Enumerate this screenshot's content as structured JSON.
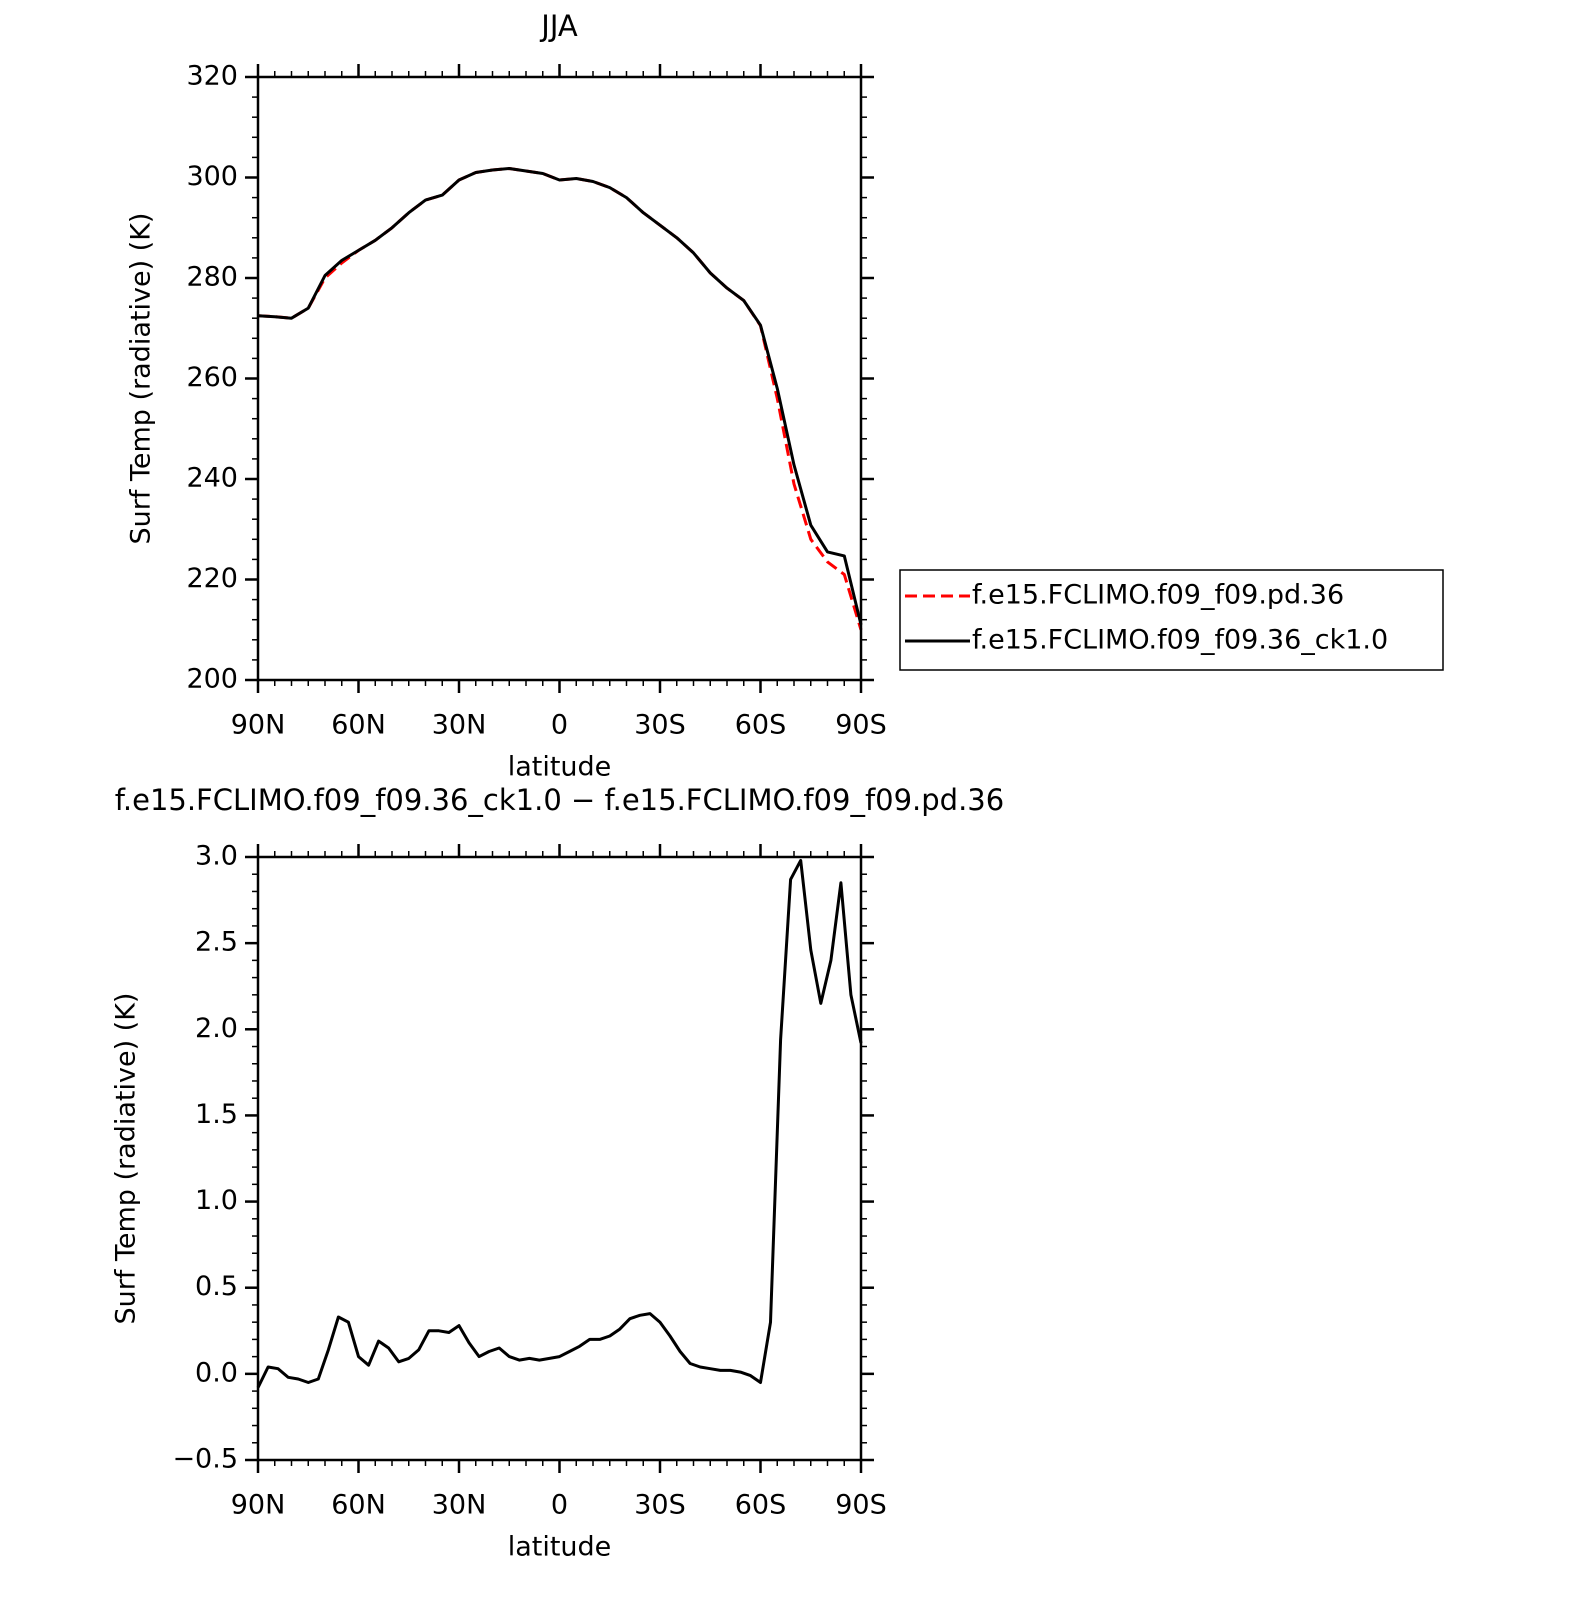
{
  "chart_data": [
    {
      "type": "line",
      "title": "JJA",
      "xlabel": "latitude",
      "ylabel": "Surf Temp (radiative) (K)",
      "x": [
        90,
        85,
        80,
        75,
        70,
        65,
        60,
        55,
        50,
        45,
        40,
        35,
        30,
        25,
        20,
        15,
        10,
        5,
        0,
        -5,
        -10,
        -15,
        -20,
        -25,
        -30,
        -35,
        -40,
        -45,
        -50,
        -55,
        -60,
        -65,
        -70,
        -75,
        -80,
        -85,
        -90
      ],
      "series": [
        {
          "name": "f.e15.FCLIMO.f09_f09.pd.36",
          "color": "#ff0000",
          "dash": true,
          "values": [
            272.5,
            272.3,
            272,
            274,
            280,
            283,
            285.5,
            287.5,
            290,
            293,
            295.5,
            296.5,
            299.5,
            301,
            301.5,
            301.8,
            301.3,
            300.8,
            299.5,
            299.8,
            299.2,
            298,
            296,
            293,
            290.5,
            288,
            285,
            281,
            278,
            275.5,
            270.5,
            256,
            239,
            228,
            223.5,
            221,
            210
          ]
        },
        {
          "name": "f.e15.FCLIMO.f09_f09.36_ck1.0",
          "color": "#000000",
          "dash": false,
          "values": [
            272.5,
            272.3,
            272,
            274,
            280.5,
            283.5,
            285.5,
            287.5,
            290,
            293,
            295.5,
            296.5,
            299.5,
            301,
            301.5,
            301.8,
            301.3,
            300.8,
            299.5,
            299.8,
            299.2,
            298,
            296,
            293,
            290.5,
            288,
            285,
            281,
            278,
            275.5,
            270.6,
            258,
            242.8,
            230.8,
            225.5,
            224.7,
            211
          ]
        }
      ],
      "xlim": [
        90,
        -90
      ],
      "xticks": [
        {
          "value": 90,
          "label": "90N"
        },
        {
          "value": 60,
          "label": "60N"
        },
        {
          "value": 30,
          "label": "30N"
        },
        0,
        {
          "value": -30,
          "label": "30S"
        },
        {
          "value": -60,
          "label": "60S"
        },
        {
          "value": -90,
          "label": "90S"
        }
      ],
      "ylim": [
        200,
        320
      ],
      "yticks": [
        200,
        220,
        240,
        260,
        280,
        300,
        320
      ]
    },
    {
      "type": "line",
      "title": "f.e15.FCLIMO.f09_f09.36_ck1.0 − f.e15.FCLIMO.f09_f09.pd.36",
      "xlabel": "latitude",
      "ylabel": "Surf Temp (radiative) (K)",
      "x": [
        90,
        87,
        84,
        81,
        78,
        75,
        72,
        69,
        66,
        63,
        60,
        57,
        54,
        51,
        48,
        45,
        42,
        39,
        36,
        33,
        30,
        27,
        24,
        21,
        18,
        15,
        12,
        9,
        6,
        3,
        0,
        -3,
        -6,
        -9,
        -12,
        -15,
        -18,
        -21,
        -24,
        -27,
        -30,
        -33,
        -36,
        -39,
        -42,
        -45,
        -48,
        -51,
        -54,
        -57,
        -60,
        -63,
        -66,
        -69,
        -72,
        -75,
        -78,
        -81,
        -84,
        -87,
        -90
      ],
      "series": [
        {
          "color": "#000000",
          "values": [
            -0.08,
            0.04,
            0.03,
            -0.02,
            -0.03,
            -0.05,
            -0.03,
            0.14,
            0.33,
            0.3,
            0.1,
            0.05,
            0.19,
            0.15,
            0.07,
            0.09,
            0.14,
            0.25,
            0.25,
            0.24,
            0.28,
            0.18,
            0.1,
            0.13,
            0.15,
            0.1,
            0.08,
            0.09,
            0.08,
            0.09,
            0.1,
            0.13,
            0.16,
            0.2,
            0.2,
            0.22,
            0.26,
            0.32,
            0.34,
            0.35,
            0.3,
            0.22,
            0.13,
            0.06,
            0.04,
            0.03,
            0.02,
            0.02,
            0.01,
            -0.01,
            -0.05,
            0.3,
            1.94,
            2.87,
            2.98,
            2.46,
            2.15,
            2.4,
            2.85,
            2.2,
            1.92
          ]
        }
      ],
      "xlim": [
        90,
        -90
      ],
      "xticks": [
        {
          "value": 90,
          "label": "90N"
        },
        {
          "value": 60,
          "label": "60N"
        },
        {
          "value": 30,
          "label": "30N"
        },
        0,
        {
          "value": -30,
          "label": "30S"
        },
        {
          "value": -60,
          "label": "60S"
        },
        {
          "value": -90,
          "label": "90S"
        }
      ],
      "ylim": [
        -0.5,
        3.0
      ],
      "yticks": [
        {
          "value": -0.5,
          "label": "−0.5"
        },
        {
          "value": 0,
          "label": "0.0"
        },
        {
          "value": 0.5,
          "label": "0.5"
        },
        {
          "value": 1,
          "label": "1.0"
        },
        {
          "value": 1.5,
          "label": "1.5"
        },
        {
          "value": 2,
          "label": "2.0"
        },
        {
          "value": 2.5,
          "label": "2.5"
        },
        {
          "value": 3,
          "label": "3.0"
        }
      ]
    }
  ]
}
